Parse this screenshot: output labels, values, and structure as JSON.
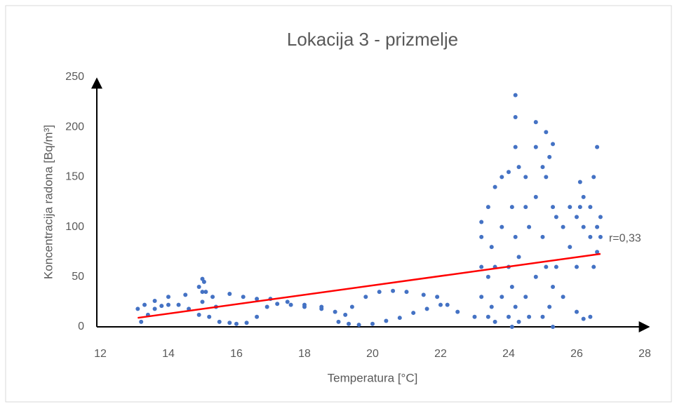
{
  "chart_data": {
    "type": "scatter",
    "title": "Lokacija 3 - prizmelje",
    "x_label": "Temperatura [°C]",
    "y_label": "Koncentracija radona [Bq/m³]",
    "color": "#4472c4",
    "x": [
      13.1,
      13.2,
      13.4,
      13.6,
      13.8,
      14.0,
      14.3,
      14.6,
      14.9,
      13.3,
      13.6,
      14.0,
      14.5,
      15.0,
      14.9,
      15.0,
      15.05,
      15.1,
      15.0,
      15.2,
      15.3,
      15.4,
      15.5,
      15.8,
      16.0,
      16.3,
      16.6,
      16.9,
      17.2,
      17.6,
      18.0,
      18.5,
      18.9,
      19.2,
      15.8,
      16.2,
      16.6,
      17.0,
      17.5,
      18.0,
      18.5,
      19.0,
      19.3,
      19.6,
      20.0,
      20.4,
      20.8,
      21.2,
      21.6,
      22.0,
      19.4,
      19.8,
      20.2,
      20.6,
      21.0,
      21.5,
      21.9,
      22.2,
      22.5,
      23.0,
      23.2,
      23.2,
      23.2,
      23.2,
      23.4,
      23.4,
      23.4,
      23.5,
      23.5,
      23.6,
      23.6,
      23.6,
      23.8,
      23.8,
      23.8,
      24.0,
      24.0,
      24.0,
      24.1,
      24.1,
      24.1,
      24.2,
      24.2,
      24.2,
      24.2,
      24.2,
      24.3,
      24.3,
      24.3,
      24.5,
      24.5,
      24.5,
      24.6,
      24.6,
      24.8,
      24.8,
      24.8,
      24.8,
      25.0,
      25.0,
      25.0,
      25.1,
      25.1,
      25.1,
      25.2,
      25.2,
      25.3,
      25.3,
      25.3,
      25.3,
      25.4,
      25.4,
      25.6,
      25.6,
      25.8,
      25.8,
      26.0,
      26.0,
      26.0,
      26.1,
      26.1,
      26.2,
      26.2,
      26.2,
      26.4,
      26.4,
      26.4,
      26.5,
      26.5,
      26.6,
      26.6,
      26.6,
      26.7,
      26.7
    ],
    "values": [
      18,
      5,
      12,
      18,
      21,
      22,
      22,
      18,
      12,
      22,
      26,
      30,
      32,
      35,
      40,
      48,
      45,
      35,
      25,
      10,
      30,
      20,
      5,
      4,
      3,
      4,
      10,
      20,
      23,
      22,
      20,
      18,
      15,
      12,
      33,
      30,
      28,
      28,
      25,
      22,
      20,
      5,
      3,
      2,
      3,
      6,
      9,
      14,
      18,
      22,
      20,
      30,
      35,
      36,
      35,
      32,
      30,
      22,
      15,
      10,
      30,
      60,
      90,
      105,
      10,
      50,
      120,
      80,
      20,
      5,
      140,
      60,
      100,
      30,
      150,
      10,
      60,
      155,
      0,
      120,
      40,
      232,
      210,
      180,
      90,
      20,
      160,
      70,
      5,
      120,
      30,
      150,
      100,
      10,
      205,
      180,
      130,
      50,
      90,
      10,
      160,
      195,
      150,
      60,
      20,
      170,
      183,
      120,
      40,
      0,
      110,
      60,
      100,
      30,
      80,
      120,
      60,
      15,
      110,
      145,
      120,
      8,
      130,
      100,
      10,
      90,
      120,
      150,
      60,
      180,
      100,
      75,
      110,
      90
    ],
    "trendline": {
      "x": [
        13.1,
        26.7
      ],
      "values": [
        9,
        73
      ],
      "color": "#ff0000"
    },
    "annotation": "r=0,33",
    "xlim": [
      12,
      28
    ],
    "xticks": [
      12,
      14,
      16,
      18,
      20,
      22,
      24,
      26,
      28
    ],
    "ylim": [
      0,
      250
    ],
    "yticks": [
      0,
      50,
      100,
      150,
      200,
      250
    ],
    "grid": false
  }
}
